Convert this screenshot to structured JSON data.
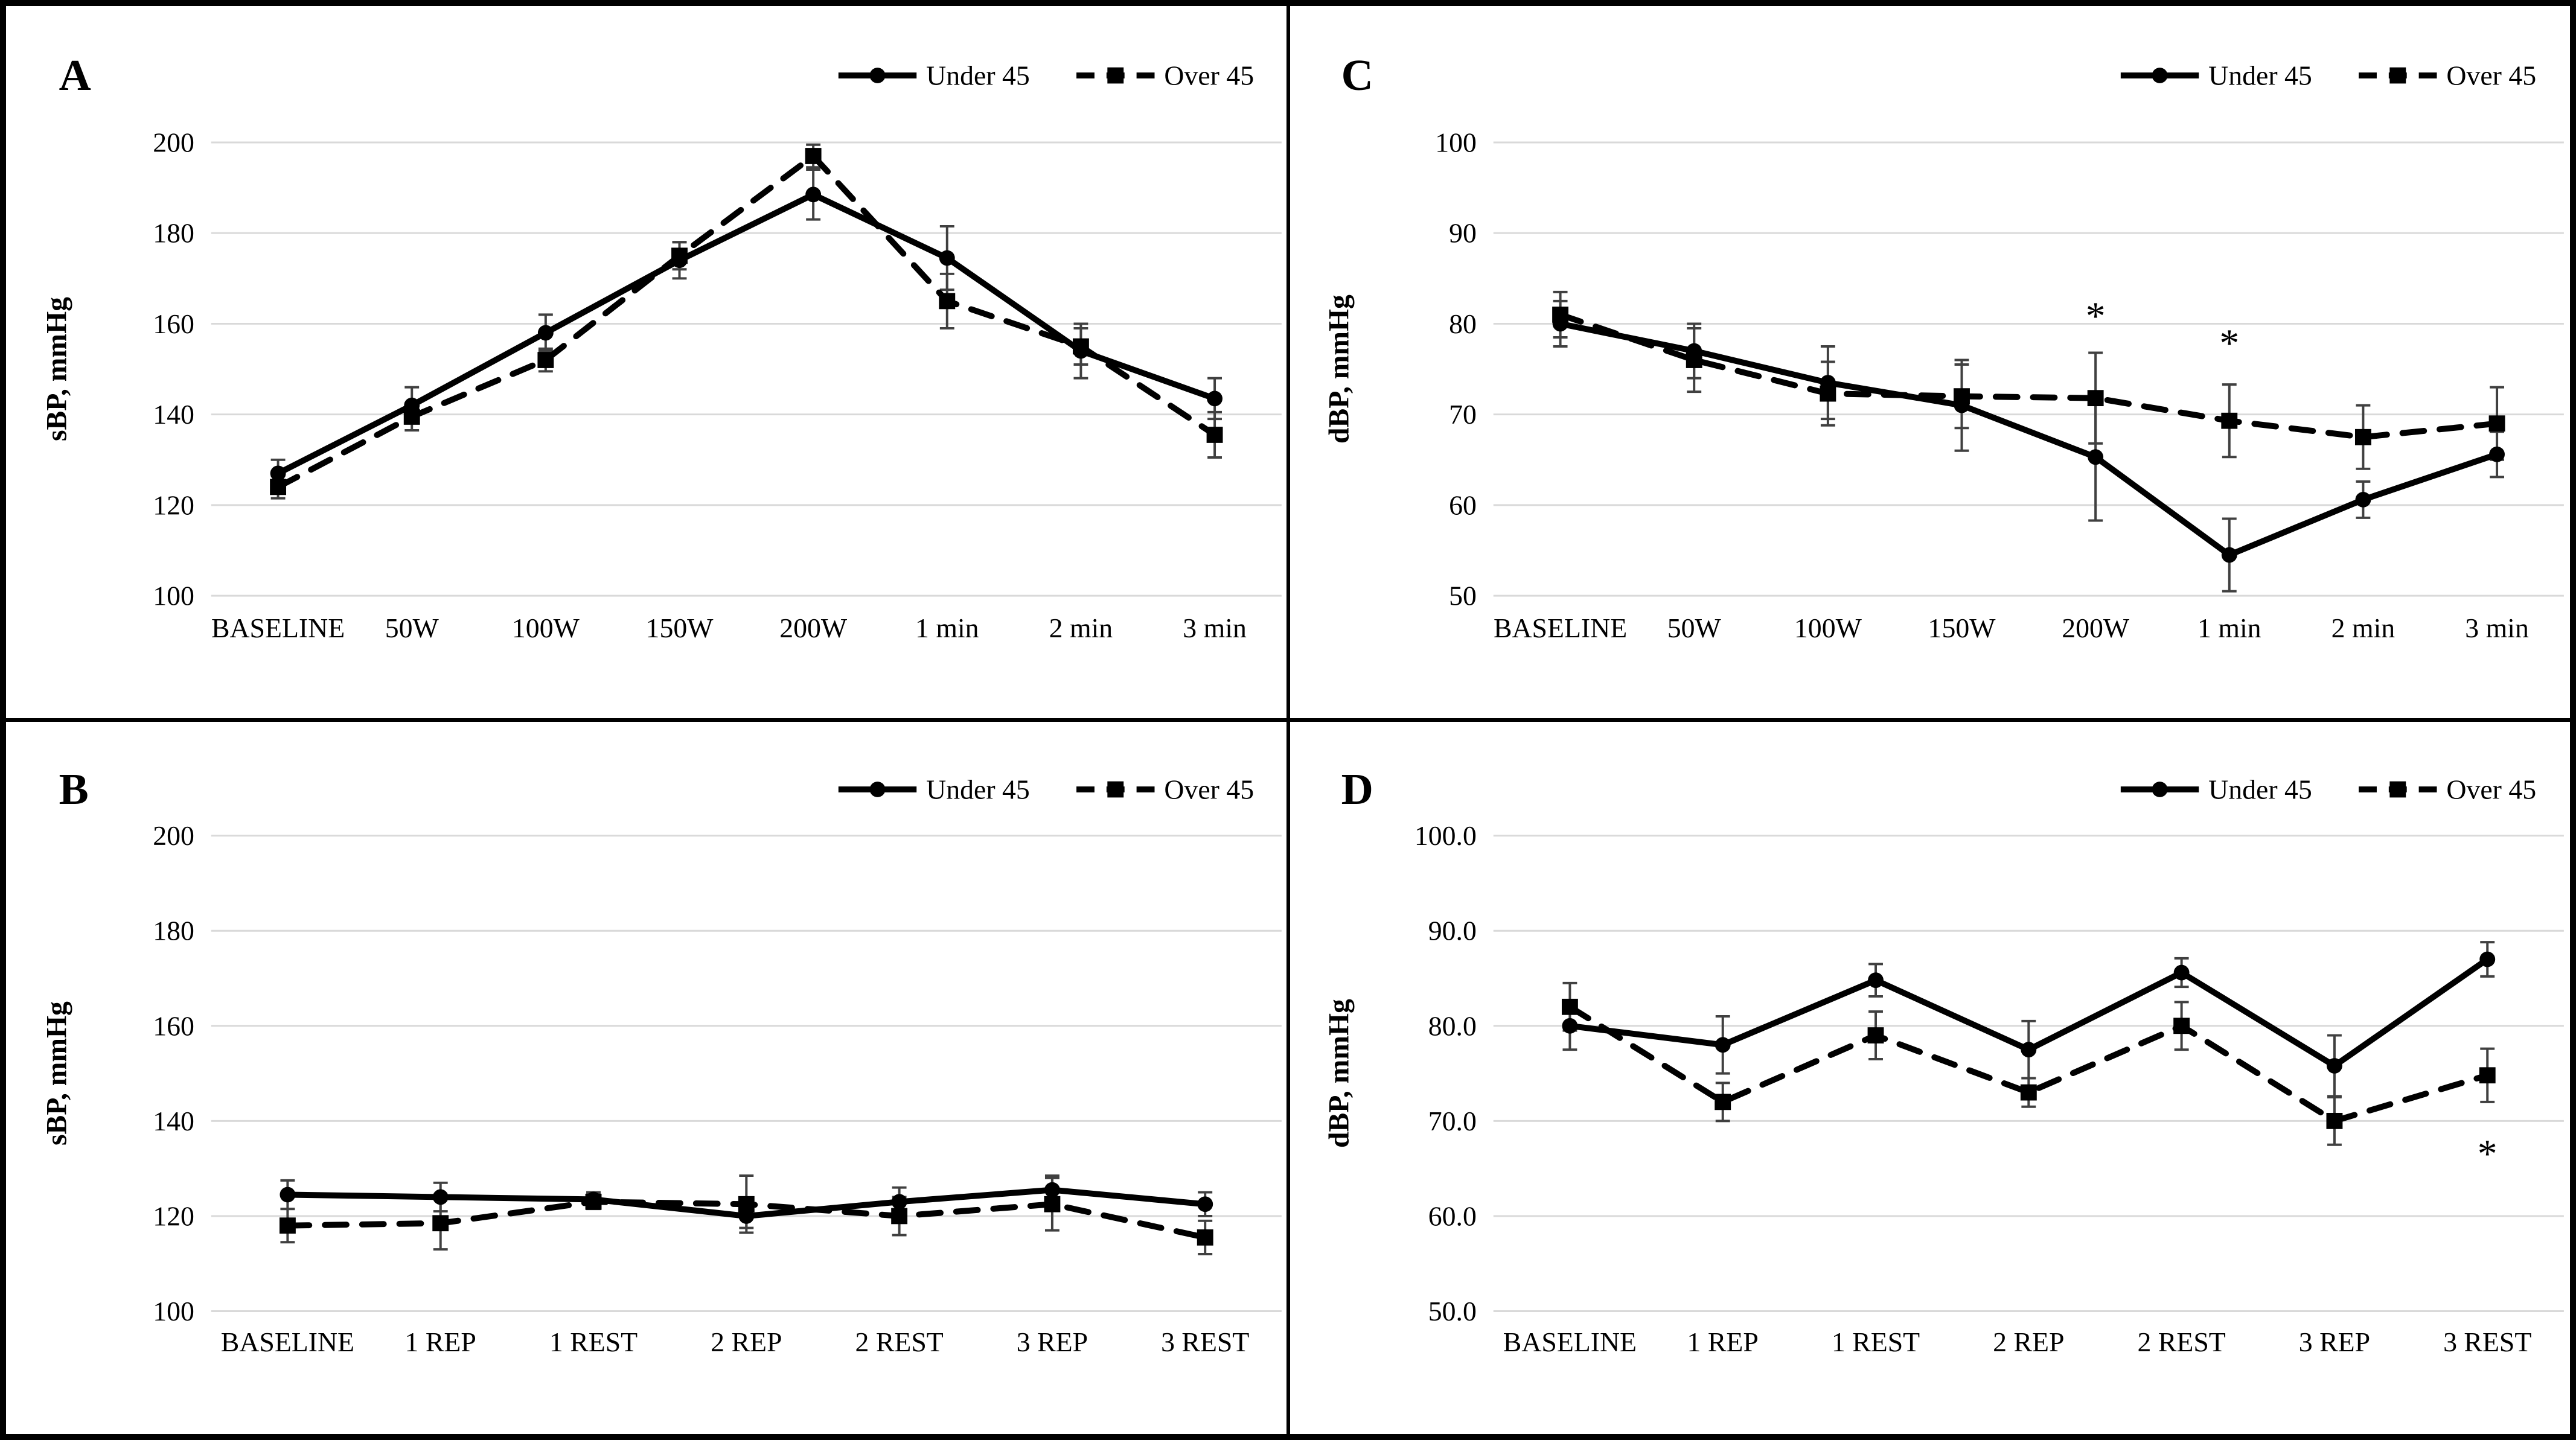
{
  "figure": {
    "background": "#ffffff",
    "border_color": "#000000",
    "gridline_color": "#d9d9d9",
    "errorbar_color": "#404040",
    "series_color": "#000000"
  },
  "legend": {
    "items": [
      {
        "id": "under45",
        "label": "Under 45",
        "marker": "circle",
        "line": "solid"
      },
      {
        "id": "over45",
        "label": "Over 45",
        "marker": "square",
        "line": "dashed"
      }
    ]
  },
  "chart_data": [
    {
      "id": "A",
      "panel_label": "A",
      "type": "line",
      "position": "top-left",
      "ylabel": "sBP, mmHg",
      "ylim": [
        100,
        200
      ],
      "yticks": [
        100,
        120,
        140,
        160,
        180,
        200
      ],
      "ytick_labels": [
        "100",
        "120",
        "140",
        "160",
        "180",
        "200"
      ],
      "grid": true,
      "legend_position": "top-right",
      "categories": [
        "BASELINE",
        "50W",
        "100W",
        "150W",
        "200W",
        "1 min",
        "2 min",
        "3 min"
      ],
      "series": [
        {
          "name": "Under 45",
          "marker": "circle",
          "line": "solid",
          "values": [
            127,
            142,
            158,
            174,
            188.5,
            174.5,
            154,
            143.5
          ],
          "errors": [
            3,
            4,
            4,
            4,
            5.5,
            7,
            6,
            4.5
          ]
        },
        {
          "name": "Over 45",
          "marker": "square",
          "line": "dashed",
          "values": [
            124,
            139.5,
            152,
            175,
            197,
            165,
            155,
            135.5
          ],
          "errors": [
            2.5,
            3,
            2.5,
            3,
            2.5,
            6,
            4,
            5
          ]
        }
      ],
      "annotations": []
    },
    {
      "id": "C",
      "panel_label": "C",
      "type": "line",
      "position": "top-right",
      "ylabel": "dBP, mmHg",
      "ylim": [
        50,
        100
      ],
      "yticks": [
        50,
        60,
        70,
        80,
        90,
        100
      ],
      "ytick_labels": [
        "50",
        "60",
        "70",
        "80",
        "90",
        "100"
      ],
      "grid": true,
      "legend_position": "top-right",
      "categories": [
        "BASELINE",
        "50W",
        "100W",
        "150W",
        "200W",
        "1 min",
        "2 min",
        "3 min"
      ],
      "series": [
        {
          "name": "Under 45",
          "marker": "circle",
          "line": "solid",
          "values": [
            80,
            77,
            73.5,
            71,
            65.3,
            54.5,
            60.6,
            65.6
          ],
          "errors": [
            2.5,
            3,
            4,
            5,
            7,
            4,
            2,
            2.5
          ]
        },
        {
          "name": "Over 45",
          "marker": "square",
          "line": "dashed",
          "values": [
            81,
            76,
            72.3,
            72,
            71.8,
            69.3,
            67.5,
            69
          ],
          "errors": [
            2.5,
            3.5,
            3.5,
            3.5,
            5,
            4,
            3.5,
            4
          ]
        }
      ],
      "annotations": [
        {
          "text": "*",
          "category": "200W",
          "value": 80.8
        },
        {
          "text": "*",
          "category": "1 min",
          "value": 77.8
        }
      ]
    },
    {
      "id": "B",
      "panel_label": "B",
      "type": "line",
      "position": "bottom-left",
      "ylabel": "sBP, mmHg",
      "ylim": [
        100,
        200
      ],
      "yticks": [
        100,
        120,
        140,
        160,
        180,
        200
      ],
      "ytick_labels": [
        "100",
        "120",
        "140",
        "160",
        "180",
        "200"
      ],
      "grid": true,
      "legend_position": "top-right",
      "categories": [
        "BASELINE",
        "1 REP",
        "1 REST",
        "2 REP",
        "2 REST",
        "3 REP",
        "3 REST"
      ],
      "series": [
        {
          "name": "Under 45",
          "marker": "circle",
          "line": "solid",
          "values": [
            124.5,
            124,
            123.5,
            120,
            123,
            125.5,
            122.5
          ],
          "errors": [
            3,
            3,
            1.5,
            2.5,
            3,
            3,
            2.5
          ]
        },
        {
          "name": "Over 45",
          "marker": "square",
          "line": "dashed",
          "values": [
            118,
            118.5,
            123,
            122.5,
            120,
            122.5,
            115.5
          ],
          "errors": [
            3.5,
            5.5,
            1.5,
            6,
            4,
            5.5,
            3.5
          ]
        }
      ],
      "annotations": []
    },
    {
      "id": "D",
      "panel_label": "D",
      "type": "line",
      "position": "bottom-right",
      "ylabel": "dBP, mmHg",
      "ylim": [
        50,
        100
      ],
      "yticks": [
        50,
        60,
        70,
        80,
        90,
        100
      ],
      "ytick_labels": [
        "50.0",
        "60.0",
        "70.0",
        "80.0",
        "90.0",
        "100.0"
      ],
      "grid": true,
      "legend_position": "top-right",
      "categories": [
        "BASELINE",
        "1 REP",
        "1 REST",
        "2 REP",
        "2 REST",
        "3 REP",
        "3 REST"
      ],
      "series": [
        {
          "name": "Under 45",
          "marker": "circle",
          "line": "solid",
          "values": [
            80,
            78,
            84.8,
            77.5,
            85.6,
            75.8,
            87
          ],
          "errors": [
            2.5,
            3,
            1.7,
            3,
            1.5,
            3.2,
            1.8
          ]
        },
        {
          "name": "Over 45",
          "marker": "square",
          "line": "dashed",
          "values": [
            82,
            72,
            79,
            73,
            80,
            70,
            74.8
          ],
          "errors": [
            2.5,
            2,
            2.5,
            1.5,
            2.5,
            2.5,
            2.8
          ]
        }
      ],
      "annotations": [
        {
          "text": "*",
          "category": "3 REST",
          "value": 66.5
        }
      ]
    }
  ]
}
